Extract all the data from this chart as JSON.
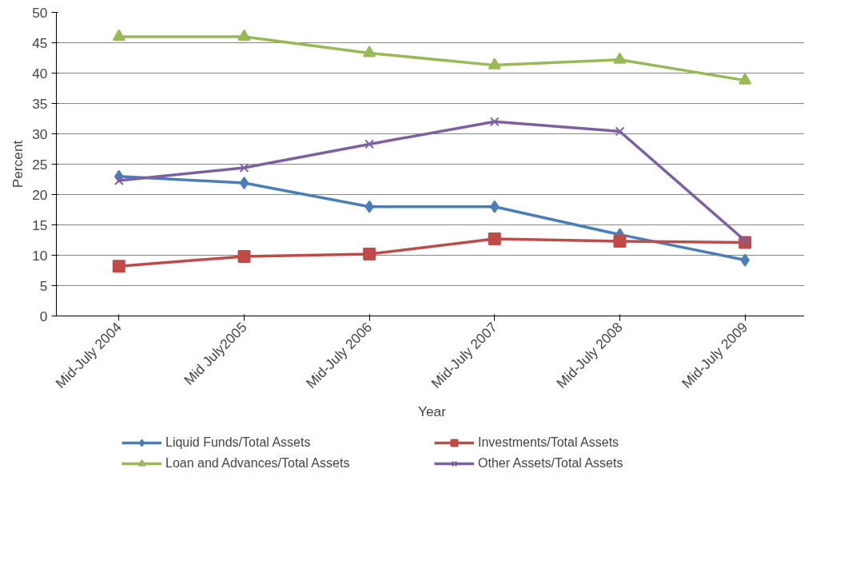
{
  "chart_data": {
    "type": "line",
    "xlabel": "Year",
    "ylabel": "Percent",
    "categories": [
      "Mid-July 2004",
      "Mid July2005",
      "Mid-July 2006",
      "Mid-July 2007",
      "Mid-July 2008",
      "Mid-July 2009"
    ],
    "series": [
      {
        "name": "Liquid Funds/Total Assets",
        "color": "#4a7ebb",
        "marker": "diamond",
        "values": [
          23.0,
          21.9,
          18.0,
          18.0,
          13.4,
          9.2
        ]
      },
      {
        "name": "Investments/Total Assets",
        "color": "#be4b48",
        "marker": "square",
        "values": [
          8.2,
          9.8,
          10.2,
          12.7,
          12.3,
          12.1
        ]
      },
      {
        "name": "Loan and Advances/Total Assets",
        "color": "#98b954",
        "marker": "triangle",
        "values": [
          46.0,
          46.0,
          43.3,
          41.3,
          42.2,
          38.8
        ]
      },
      {
        "name": "Other Assets/Total Assets",
        "color": "#7d60a0",
        "marker": "cross",
        "values": [
          22.3,
          24.4,
          28.3,
          32.0,
          30.4,
          12.4
        ]
      }
    ],
    "ylim": [
      0,
      50
    ],
    "yticks": [
      0,
      5,
      10,
      15,
      20,
      25,
      30,
      35,
      40,
      45,
      50
    ],
    "grid": "y",
    "legend": "bottom",
    "line_style": "solid"
  }
}
